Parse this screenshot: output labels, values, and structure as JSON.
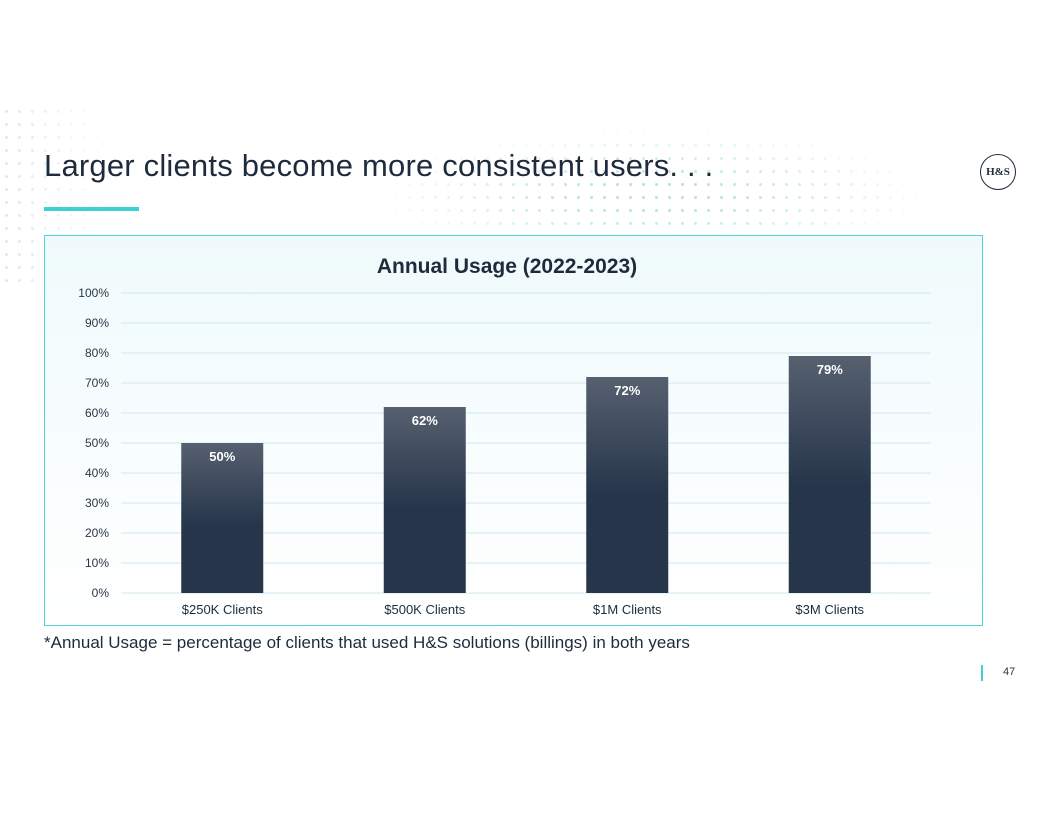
{
  "slide": {
    "title": "Larger clients become more consistent users. . .",
    "logo_text": "H&S",
    "footnote": "*Annual Usage = percentage of clients that used H&S solutions (billings) in both years",
    "page_number": "47"
  },
  "colors": {
    "accent": "#3fd0d4",
    "bar_top": "#56606f",
    "bar_bottom": "#26354a",
    "gridline": "#cfe8ee",
    "text": "#1e2b3c"
  },
  "chart_data": {
    "type": "bar",
    "title": "Annual Usage (2022-2023)",
    "categories": [
      "$250K Clients",
      "$500K Clients",
      "$1M Clients",
      "$3M Clients"
    ],
    "values": [
      50,
      62,
      72,
      79
    ],
    "data_labels": [
      "50%",
      "62%",
      "72%",
      "79%"
    ],
    "yticks": [
      "0%",
      "10%",
      "20%",
      "30%",
      "40%",
      "50%",
      "60%",
      "70%",
      "80%",
      "90%",
      "100%"
    ],
    "ylim": [
      0,
      100
    ],
    "xlabel": "",
    "ylabel": "",
    "grid": true,
    "legend": "none"
  }
}
